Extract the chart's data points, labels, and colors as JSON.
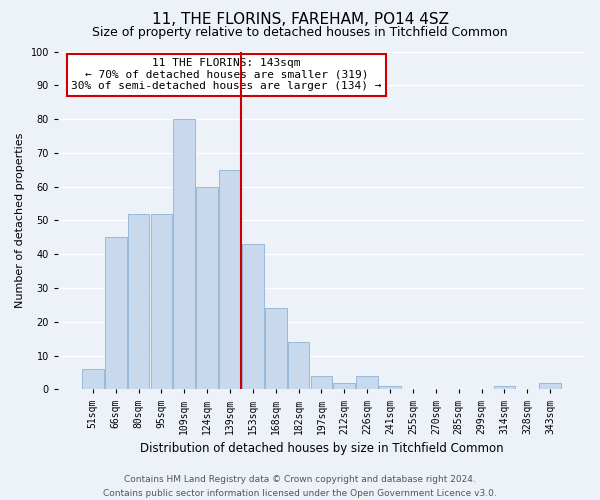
{
  "title": "11, THE FLORINS, FAREHAM, PO14 4SZ",
  "subtitle": "Size of property relative to detached houses in Titchfield Common",
  "xlabel": "Distribution of detached houses by size in Titchfield Common",
  "ylabel": "Number of detached properties",
  "bar_labels": [
    "51sqm",
    "66sqm",
    "80sqm",
    "95sqm",
    "109sqm",
    "124sqm",
    "139sqm",
    "153sqm",
    "168sqm",
    "182sqm",
    "197sqm",
    "212sqm",
    "226sqm",
    "241sqm",
    "255sqm",
    "270sqm",
    "285sqm",
    "299sqm",
    "314sqm",
    "328sqm",
    "343sqm"
  ],
  "bar_values": [
    6,
    45,
    52,
    52,
    80,
    60,
    65,
    43,
    24,
    14,
    4,
    2,
    4,
    1,
    0,
    0,
    0,
    0,
    1,
    0,
    2
  ],
  "bar_color": "#c8d9ed",
  "bar_edge_color": "#9ab8d8",
  "vline_color": "#cc0000",
  "vline_x_index": 6.5,
  "ylim": [
    0,
    100
  ],
  "yticks": [
    0,
    10,
    20,
    30,
    40,
    50,
    60,
    70,
    80,
    90,
    100
  ],
  "annotation_line1": "11 THE FLORINS: 143sqm",
  "annotation_line2": "← 70% of detached houses are smaller (319)",
  "annotation_line3": "30% of semi-detached houses are larger (134) →",
  "annotation_box_edgecolor": "#cc0000",
  "footer_line1": "Contains HM Land Registry data © Crown copyright and database right 2024.",
  "footer_line2": "Contains public sector information licensed under the Open Government Licence v3.0.",
  "bg_color": "#edf2f9",
  "grid_color": "#ffffff",
  "title_fontsize": 11,
  "subtitle_fontsize": 9,
  "xlabel_fontsize": 8.5,
  "ylabel_fontsize": 8,
  "tick_fontsize": 7,
  "footer_fontsize": 6.5,
  "ann_fontsize": 8
}
